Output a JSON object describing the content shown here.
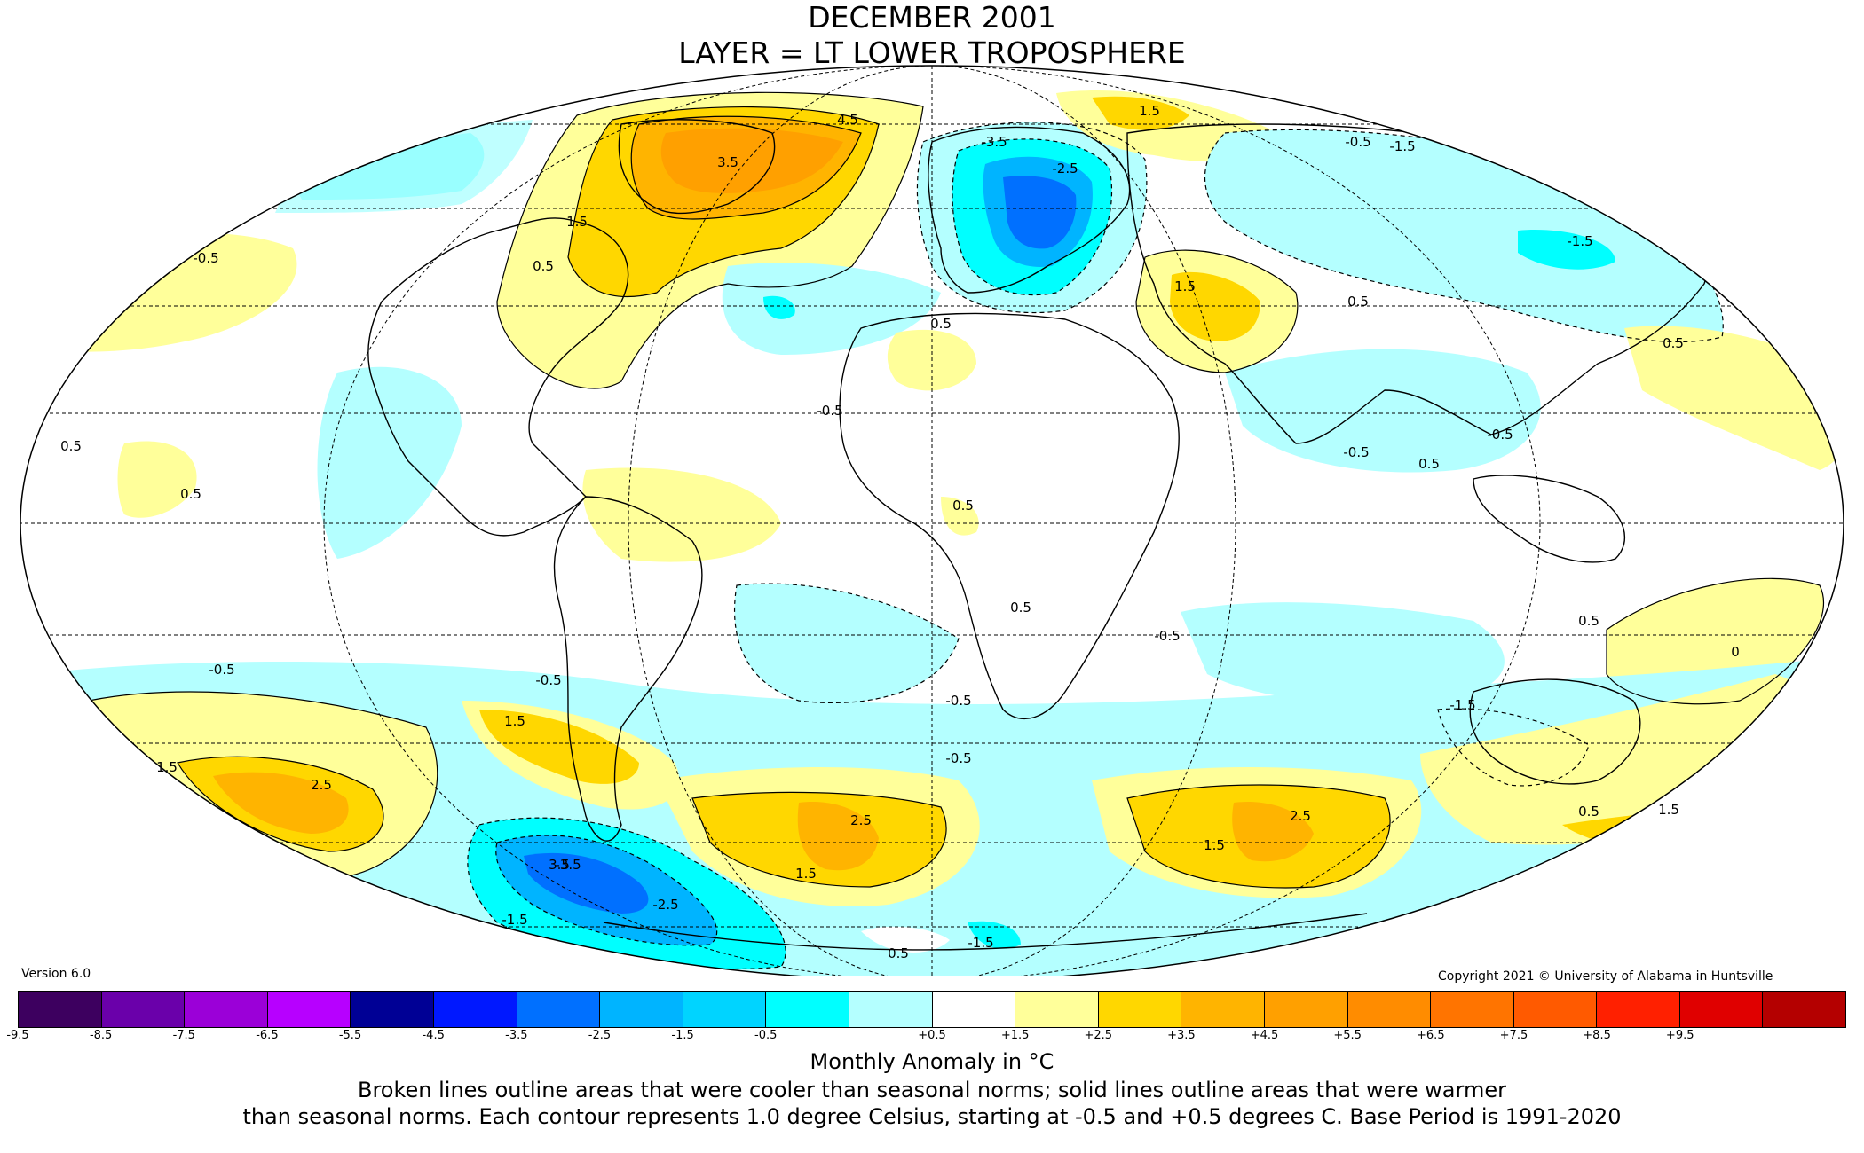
{
  "title": {
    "line1": "DECEMBER 2001",
    "line2": "LAYER = LT LOWER TROPOSPHERE"
  },
  "version_label": "Version 6.0",
  "copyright": "Copyright 2021 © University of Alabama in Huntsville",
  "colorbar": {
    "colors": [
      "#3d005f",
      "#6a00aa",
      "#9b00d8",
      "#b700ff",
      "#000095",
      "#0018ff",
      "#0070ff",
      "#00b4ff",
      "#00d4ff",
      "#00ffff",
      "#b4ffff",
      "#ffffff",
      "#ffff9a",
      "#ffd700",
      "#ffb400",
      "#ffa000",
      "#ff8c00",
      "#ff7400",
      "#ff5a00",
      "#ff2000",
      "#e00000",
      "#b40000"
    ],
    "ticks": [
      "-9.5",
      "-8.5",
      "-7.5",
      "-6.5",
      "-5.5",
      "-4.5",
      "-3.5",
      "-2.5",
      "-1.5",
      "-0.5",
      "+0.5",
      "+1.5",
      "+2.5",
      "+3.5",
      "+4.5",
      "+5.5",
      "+6.5",
      "+7.5",
      "+8.5",
      "+9.5"
    ],
    "tick_positions": [
      0,
      1,
      2,
      3,
      4,
      5,
      6,
      7,
      8,
      9,
      11,
      12,
      13,
      14,
      15,
      16,
      17,
      18,
      19,
      20
    ]
  },
  "units_label": "Monthly Anomaly in °C",
  "caption": {
    "line1": "Broken lines outline areas that were cooler than seasonal norms; solid lines outline areas that were warmer",
    "line2": "than seasonal norms. Each contour represents 1.0 degree Celsius, starting at -0.5 and +0.5 degrees C. Base Period is 1991-2020"
  },
  "contour_labels": [
    {
      "text": "-0.5"
    },
    {
      "text": "-0.5"
    },
    {
      "text": "-0.5"
    },
    {
      "text": "-0.5"
    },
    {
      "text": "-0.5"
    },
    {
      "text": "-0.5"
    },
    {
      "text": "-0.5"
    },
    {
      "text": "-0.5"
    },
    {
      "text": "-0.5"
    },
    {
      "text": "-0.5"
    },
    {
      "text": "-1.5"
    },
    {
      "text": "-1.5"
    },
    {
      "text": "-1.5"
    },
    {
      "text": "-1.5"
    },
    {
      "text": "-1.5"
    },
    {
      "text": "-2.5"
    },
    {
      "text": "-2.5"
    },
    {
      "text": "-3.5"
    },
    {
      "text": "-3.5"
    },
    {
      "text": "0.5"
    },
    {
      "text": "0.5"
    },
    {
      "text": "0.5"
    },
    {
      "text": "0.5"
    },
    {
      "text": "0.5"
    },
    {
      "text": "0.5"
    },
    {
      "text": "0.5"
    },
    {
      "text": "0.5"
    },
    {
      "text": "0.5"
    },
    {
      "text": "0.5"
    },
    {
      "text": "0.5"
    },
    {
      "text": "0.5"
    },
    {
      "text": "1.5"
    },
    {
      "text": "1.5"
    },
    {
      "text": "1.5"
    },
    {
      "text": "1.5"
    },
    {
      "text": "1.5"
    },
    {
      "text": "1.5"
    },
    {
      "text": "1.5"
    },
    {
      "text": "1.5"
    },
    {
      "text": "2.5"
    },
    {
      "text": "2.5"
    },
    {
      "text": "2.5"
    },
    {
      "text": "3.5"
    },
    {
      "text": "3.5"
    },
    {
      "text": "4.5"
    },
    {
      "text": "0"
    }
  ]
}
